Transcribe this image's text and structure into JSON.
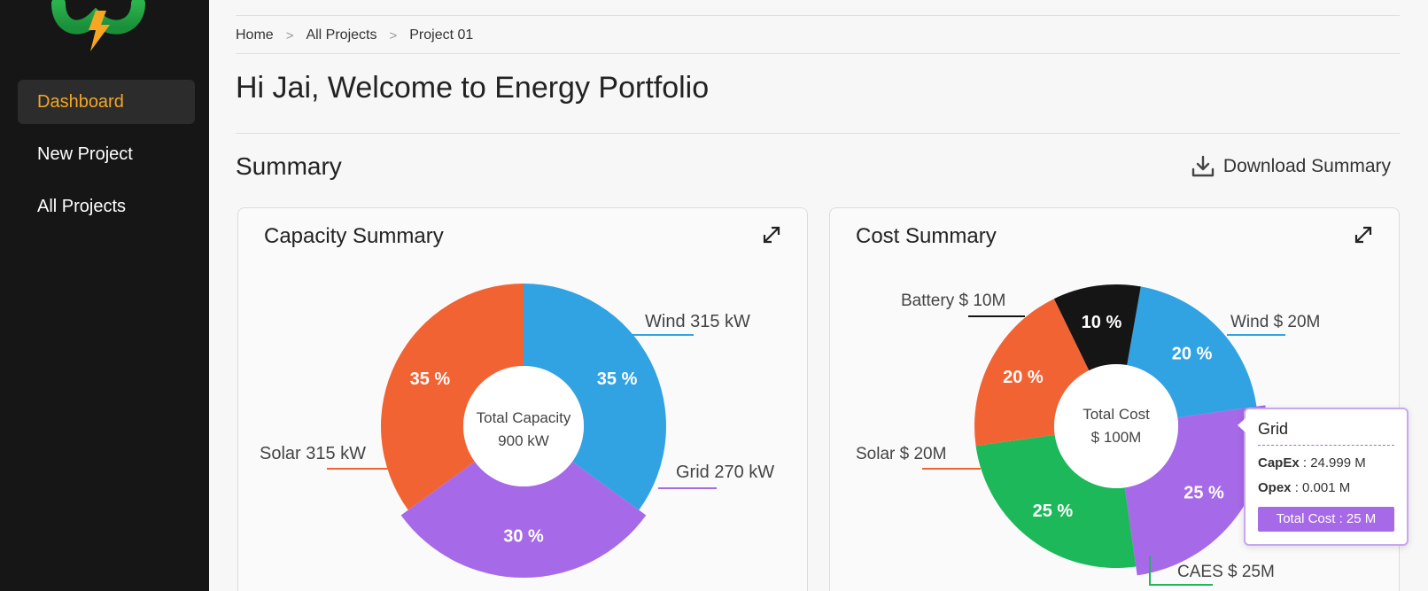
{
  "sidebar": {
    "items": [
      {
        "label": "Dashboard",
        "active": true
      },
      {
        "label": "New Project",
        "active": false
      },
      {
        "label": "All Projects",
        "active": false
      }
    ]
  },
  "breadcrumb": [
    "Home",
    "All Projects",
    "Project 01"
  ],
  "breadcrumb_separator": ">",
  "page_title": "Hi Jai, Welcome to Energy Portfolio",
  "summary": {
    "title": "Summary",
    "download_label": "Download Summary"
  },
  "colors": {
    "accent": "#f5a623",
    "wind": "#31a3e3",
    "solar": "#f26334",
    "grid": "#a669e8",
    "battery": "#151515",
    "caes": "#1db85a"
  },
  "capacity_card": {
    "title": "Capacity Summary",
    "center_line1": "Total Capacity",
    "center_line2": "900 kW",
    "callouts": {
      "wind": "Wind 315 kW",
      "solar": "Solar 315 kW",
      "grid": "Grid 270 kW"
    }
  },
  "cost_card": {
    "title": "Cost Summary",
    "center_line1": "Total Cost",
    "center_line2": "$ 100M",
    "callouts": {
      "battery": "Battery $ 10M",
      "wind": "Wind $ 20M",
      "solar": "Solar $ 20M",
      "caes": "CAES $ 25M"
    }
  },
  "tooltip": {
    "title": "Grid",
    "capex_label": "CapEx",
    "capex_value": ": 24.999 M",
    "opex_label": "Opex",
    "opex_value": ": 0.001 M",
    "total": "Total Cost : 25 M"
  },
  "chart_data": [
    {
      "type": "pie",
      "title": "Capacity Summary",
      "categories": [
        "Wind",
        "Grid",
        "Solar"
      ],
      "values": [
        35,
        30,
        35
      ],
      "data_labels": [
        "35 %",
        "30 %",
        "35 %"
      ],
      "colors": [
        "#31a3e3",
        "#a669e8",
        "#f26334"
      ],
      "highlighted": "Grid"
    },
    {
      "type": "pie",
      "title": "Cost Summary",
      "categories": [
        "Wind",
        "Grid",
        "CAES",
        "Solar",
        "Battery"
      ],
      "values": [
        20,
        25,
        25,
        20,
        10
      ],
      "data_labels": [
        "20 %",
        "25 %",
        "25 %",
        "20 %",
        "10 %"
      ],
      "colors": [
        "#31a3e3",
        "#a669e8",
        "#1db85a",
        "#f26334",
        "#151515"
      ],
      "highlighted": "Grid"
    }
  ]
}
